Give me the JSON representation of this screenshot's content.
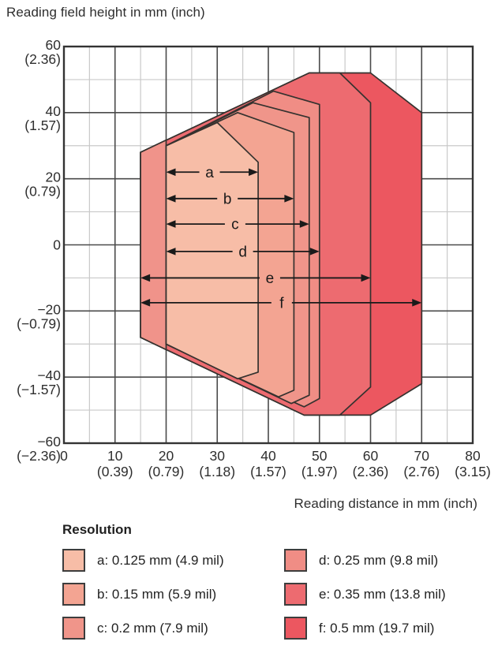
{
  "chart_data": {
    "type": "area",
    "title": "Reading field height in mm (inch)",
    "xlabel": "Reading distance in mm (inch)",
    "xlim": [
      0,
      80
    ],
    "ylim": [
      -60,
      60
    ],
    "grid": {
      "x_minor": 5,
      "x_major": 10,
      "y_minor": 10,
      "y_major": 20,
      "on": true
    },
    "x_ticks": [
      {
        "mm": "0",
        "inch": ""
      },
      {
        "mm": "10",
        "inch": "(0.39)"
      },
      {
        "mm": "20",
        "inch": "(0.79)"
      },
      {
        "mm": "30",
        "inch": "(1.18)"
      },
      {
        "mm": "40",
        "inch": "(1.57)"
      },
      {
        "mm": "50",
        "inch": "(1.97)"
      },
      {
        "mm": "60",
        "inch": "(2.36)"
      },
      {
        "mm": "70",
        "inch": "(2.76)"
      },
      {
        "mm": "80",
        "inch": "(3.15)"
      }
    ],
    "y_ticks": [
      {
        "mm": "60",
        "inch": "(2.36)"
      },
      {
        "mm": "40",
        "inch": "(1.57)"
      },
      {
        "mm": "20",
        "inch": "(0.79)"
      },
      {
        "mm": "0",
        "inch": ""
      },
      {
        "mm": "−20",
        "inch": "(−0.79)"
      },
      {
        "mm": "−40",
        "inch": "(−1.57)"
      },
      {
        "mm": "−60",
        "inch": "(−2.36)"
      }
    ],
    "regions": [
      {
        "id": "f",
        "resolution_mm": 0.5,
        "color": "#ec5760",
        "points": [
          [
            15,
            28
          ],
          [
            48,
            52
          ],
          [
            60,
            52
          ],
          [
            70,
            40
          ],
          [
            70,
            -42
          ],
          [
            60,
            -51.5
          ],
          [
            47,
            -51.5
          ],
          [
            15,
            -28
          ]
        ]
      },
      {
        "id": "e",
        "resolution_mm": 0.35,
        "color": "#ed6b70",
        "points": [
          [
            15,
            28
          ],
          [
            48,
            52
          ],
          [
            54,
            52
          ],
          [
            60,
            43
          ],
          [
            60,
            -43
          ],
          [
            54,
            -51.5
          ],
          [
            47,
            -51.5
          ],
          [
            15,
            -28
          ]
        ]
      },
      {
        "id": "near-strip",
        "resolution_mm": null,
        "color": "#f0938a",
        "points": [
          [
            15,
            28
          ],
          [
            20,
            31.7
          ],
          [
            20,
            -31.7
          ],
          [
            15,
            -28
          ]
        ]
      },
      {
        "id": "d",
        "resolution_mm": 0.25,
        "color": "#f08d85",
        "points": [
          [
            20,
            30
          ],
          [
            41,
            46.5
          ],
          [
            50,
            42.5
          ],
          [
            50,
            -46.5
          ],
          [
            47,
            -49
          ],
          [
            20,
            -30
          ]
        ]
      },
      {
        "id": "c",
        "resolution_mm": 0.2,
        "color": "#f0958a",
        "points": [
          [
            20,
            30
          ],
          [
            37,
            43
          ],
          [
            48,
            38.5
          ],
          [
            48,
            -45.5
          ],
          [
            44.5,
            -48
          ],
          [
            20,
            -30
          ]
        ]
      },
      {
        "id": "b",
        "resolution_mm": 0.15,
        "color": "#f3a492",
        "points": [
          [
            20,
            30
          ],
          [
            34,
            40
          ],
          [
            45,
            34
          ],
          [
            45,
            -44
          ],
          [
            42,
            -46
          ],
          [
            20,
            -30
          ]
        ]
      },
      {
        "id": "a",
        "resolution_mm": 0.125,
        "color": "#f7bda7",
        "points": [
          [
            20,
            30
          ],
          [
            30,
            37
          ],
          [
            38,
            25
          ],
          [
            38,
            -38.5
          ],
          [
            34,
            -40.5
          ],
          [
            20,
            -30
          ]
        ]
      }
    ],
    "arrows": [
      {
        "id": "a",
        "from": 20,
        "to": 38,
        "y": 22,
        "label_x": 28.5
      },
      {
        "id": "b",
        "from": 20,
        "to": 45,
        "y": 14,
        "label_x": 32
      },
      {
        "id": "c",
        "from": 20,
        "to": 48,
        "y": 6.3,
        "label_x": 33.5
      },
      {
        "id": "d",
        "from": 20,
        "to": 50,
        "y": -2,
        "label_x": 35
      },
      {
        "id": "e",
        "from": 15,
        "to": 60,
        "y": -10,
        "label_x": 40.3
      },
      {
        "id": "f",
        "from": 15,
        "to": 70,
        "y": -17.5,
        "label_x": 42.6
      }
    ],
    "colors": {
      "grid_minor": "#c9c9c9",
      "grid_major": "#4a4a4a",
      "border": "#333333",
      "outline": "#35322f",
      "arrow": "#1a1a1a",
      "text": "#2e2e2e"
    }
  },
  "legend": {
    "title": "Resolution",
    "items": [
      {
        "key": "a",
        "label": "a: 0.125 mm (4.9 mil)",
        "color": "#f7bda7"
      },
      {
        "key": "b",
        "label": "b: 0.15 mm (5.9 mil)",
        "color": "#f3a492"
      },
      {
        "key": "c",
        "label": "c: 0.2 mm (7.9 mil)",
        "color": "#f0958a"
      },
      {
        "key": "d",
        "label": "d: 0.25 mm (9.8 mil)",
        "color": "#f08d85"
      },
      {
        "key": "e",
        "label": "e: 0.35 mm (13.8 mil)",
        "color": "#ed6b70"
      },
      {
        "key": "f",
        "label": "f: 0.5 mm (19.7 mil)",
        "color": "#ec5760"
      }
    ]
  }
}
